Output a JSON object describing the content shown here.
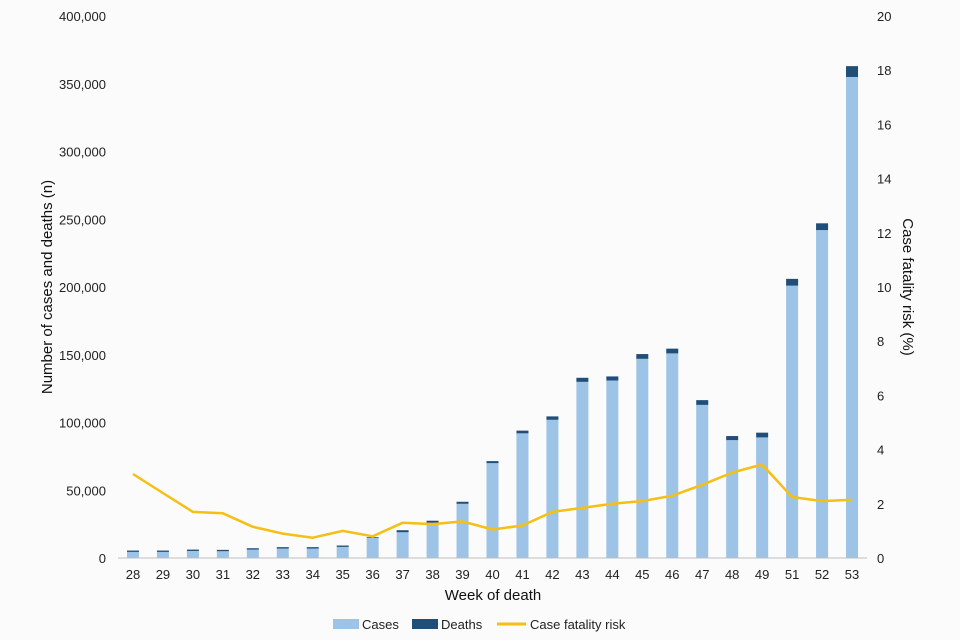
{
  "chart_data": {
    "type": "bar",
    "categories": [
      "28",
      "29",
      "30",
      "31",
      "32",
      "33",
      "34",
      "35",
      "36",
      "37",
      "38",
      "39",
      "40",
      "41",
      "42",
      "43",
      "44",
      "45",
      "46",
      "47",
      "48",
      "49",
      "51",
      "52",
      "53"
    ],
    "series": [
      {
        "name": "Cases",
        "kind": "bar-stack",
        "color": "#9dc3e6",
        "values": [
          4500,
          4500,
          5200,
          5000,
          6200,
          7000,
          7000,
          8200,
          15000,
          19000,
          26000,
          40000,
          70000,
          92000,
          102000,
          130000,
          131000,
          147000,
          151000,
          113000,
          87000,
          89000,
          201000,
          242000,
          355000
        ]
      },
      {
        "name": "Deaths",
        "kind": "bar-stack",
        "color": "#1f4e79",
        "values": [
          1000,
          1000,
          1000,
          1000,
          1000,
          1000,
          1000,
          1000,
          500,
          1500,
          1500,
          1500,
          1500,
          2000,
          2500,
          3000,
          3000,
          3500,
          3500,
          3500,
          3000,
          3500,
          5000,
          5000,
          8000
        ]
      },
      {
        "name": "Case fatality risk",
        "kind": "line",
        "axis": "right",
        "color": "#f5bf14",
        "values": [
          3.1,
          2.4,
          1.7,
          1.65,
          1.15,
          0.9,
          0.75,
          1.0,
          0.8,
          1.3,
          1.25,
          1.35,
          1.05,
          1.2,
          1.7,
          1.85,
          2.0,
          2.1,
          2.3,
          2.7,
          3.15,
          3.45,
          2.25,
          2.1,
          2.15
        ]
      }
    ],
    "xlabel": "Week of death",
    "ylabel": "Number of cases and deaths (n)",
    "y2label": "Case fatality risk (%)",
    "ylim": [
      0,
      400000
    ],
    "y2lim": [
      0,
      20
    ],
    "yticks": [
      "0",
      "50,000",
      "100,000",
      "150,000",
      "200,000",
      "250,000",
      "300,000",
      "350,000",
      "400,000"
    ],
    "y2ticks": [
      "0",
      "2",
      "4",
      "6",
      "8",
      "10",
      "12",
      "14",
      "16",
      "18",
      "20"
    ],
    "grid": false,
    "legend_position": "bottom",
    "legend": [
      "Cases",
      "Deaths",
      "Case fatality risk"
    ]
  }
}
